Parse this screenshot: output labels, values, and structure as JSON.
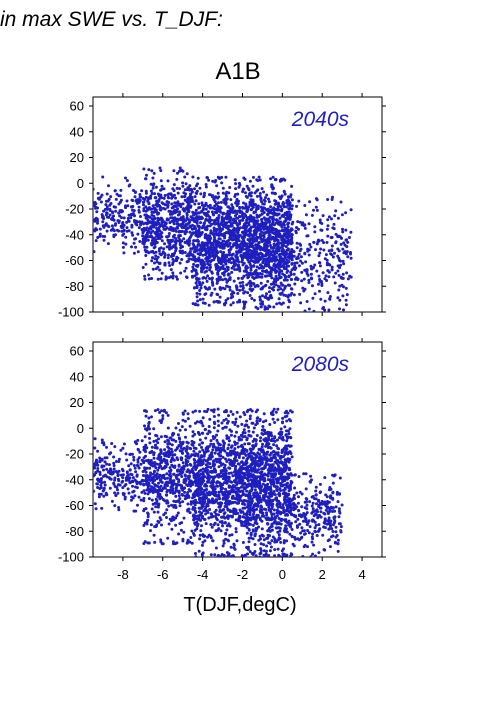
{
  "header": {
    "text": "in max SWE vs. T_DJF:"
  },
  "figure": {
    "title": "A1B",
    "xlabel": "T(DJF,degC)"
  },
  "chart_data": [
    {
      "type": "scatter",
      "panel_label": "2040s",
      "xlabel": "T(DJF,degC)",
      "ylabel": "",
      "xlim": [
        -9.5,
        5
      ],
      "ylim": [
        -100,
        67
      ],
      "xticks": [
        -8,
        -6,
        -4,
        -2,
        0,
        2,
        4
      ],
      "yticks": [
        -100,
        -80,
        -60,
        -40,
        -20,
        0,
        20,
        40,
        60
      ],
      "grid": false,
      "marker_color": "#1f1fbf",
      "cluster_summary": [
        {
          "x_range": [
            -9.5,
            -7.0
          ],
          "y_range": [
            -55,
            5
          ]
        },
        {
          "x_range": [
            -7.0,
            -4.5
          ],
          "y_range": [
            -75,
            12
          ]
        },
        {
          "x_range": [
            -4.5,
            -2.0
          ],
          "y_range": [
            -95,
            5
          ]
        },
        {
          "x_range": [
            -2.0,
            0.5
          ],
          "y_range": [
            -98,
            5
          ]
        },
        {
          "x_range": [
            0.5,
            3.5
          ],
          "y_range": [
            -100,
            -10
          ]
        }
      ]
    },
    {
      "type": "scatter",
      "panel_label": "2080s",
      "xlabel": "T(DJF,degC)",
      "ylabel": "",
      "xlim": [
        -9.5,
        5
      ],
      "ylim": [
        -100,
        67
      ],
      "xticks": [
        -8,
        -6,
        -4,
        -2,
        0,
        2,
        4
      ],
      "yticks": [
        -100,
        -80,
        -60,
        -40,
        -20,
        0,
        20,
        40,
        60
      ],
      "grid": false,
      "marker_color": "#1f1fbf",
      "cluster_summary": [
        {
          "x_range": [
            -9.5,
            -7.0
          ],
          "y_range": [
            -65,
            -8
          ]
        },
        {
          "x_range": [
            -7.0,
            -4.5
          ],
          "y_range": [
            -90,
            15
          ]
        },
        {
          "x_range": [
            -4.5,
            -2.0
          ],
          "y_range": [
            -100,
            15
          ]
        },
        {
          "x_range": [
            -2.0,
            0.5
          ],
          "y_range": [
            -100,
            15
          ]
        },
        {
          "x_range": [
            0.5,
            3.0
          ],
          "y_range": [
            -100,
            -35
          ]
        }
      ]
    }
  ]
}
